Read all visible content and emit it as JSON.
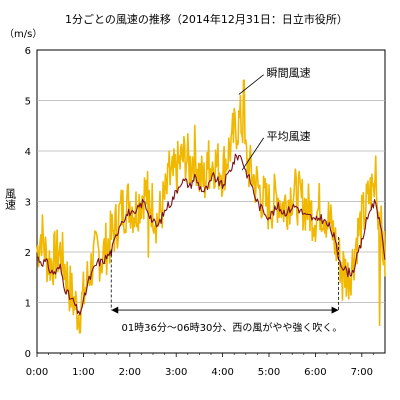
{
  "chart_data": {
    "type": "line",
    "title": "1分ごとの風速の推移（2014年12月31日：日立市役所）",
    "ylabel": "風速",
    "yunit": "（m/s）",
    "ylim": [
      0,
      6
    ],
    "yticks": [
      "0",
      "1",
      "2",
      "3",
      "4",
      "5",
      "6"
    ],
    "xlim": [
      0,
      7.5
    ],
    "xticks": [
      {
        "x": 0,
        "label": "0:00"
      },
      {
        "x": 1,
        "label": "1:00"
      },
      {
        "x": 2,
        "label": "2:00"
      },
      {
        "x": 3,
        "label": "3:00"
      },
      {
        "x": 4,
        "label": "4:00"
      },
      {
        "x": 5,
        "label": "5:00"
      },
      {
        "x": 6,
        "label": "6:00"
      },
      {
        "x": 7,
        "label": "7:00"
      }
    ],
    "grid": true,
    "colors": {
      "gust": "#f0b800",
      "mean": "#7a1020",
      "grid": "#b0b0b0",
      "annotation": "#000000"
    },
    "annotation": {
      "text": "01時36分～06時30分、西の風がやや強く吹く。",
      "x_start": 1.6,
      "x_end": 6.5,
      "y": 0.85
    },
    "series": [
      {
        "name": "瞬間風速",
        "style": "spiky",
        "label_point": [
          4.6,
          4.95
        ],
        "x": [
          0,
          0.1,
          0.2,
          0.3,
          0.4,
          0.5,
          0.6,
          0.7,
          0.8,
          0.9,
          1.0,
          1.1,
          1.2,
          1.3,
          1.4,
          1.5,
          1.6,
          1.7,
          1.8,
          1.9,
          2.0,
          2.1,
          2.2,
          2.3,
          2.4,
          2.5,
          2.6,
          2.7,
          2.8,
          2.9,
          3.0,
          3.1,
          3.2,
          3.3,
          3.4,
          3.5,
          3.6,
          3.7,
          3.8,
          3.9,
          4.0,
          4.1,
          4.2,
          4.3,
          4.4,
          4.5,
          4.6,
          4.7,
          4.8,
          4.9,
          5.0,
          5.1,
          5.2,
          5.3,
          5.4,
          5.5,
          5.6,
          5.7,
          5.8,
          5.9,
          6.0,
          6.1,
          6.2,
          6.3,
          6.4,
          6.5,
          6.6,
          6.7,
          6.8,
          6.9,
          7.0,
          7.1,
          7.2,
          7.3,
          7.4,
          7.5
        ],
        "y": [
          2.0,
          2.4,
          1.9,
          1.8,
          1.9,
          2.0,
          1.7,
          1.3,
          1.0,
          0.8,
          1.1,
          1.5,
          1.8,
          2.0,
          1.9,
          2.1,
          2.3,
          2.5,
          2.8,
          2.9,
          3.0,
          2.8,
          3.0,
          3.2,
          3.1,
          2.9,
          2.6,
          2.9,
          3.2,
          3.4,
          3.6,
          3.8,
          3.9,
          3.7,
          4.0,
          3.5,
          3.4,
          3.6,
          3.8,
          3.7,
          3.6,
          3.9,
          4.2,
          4.5,
          4.6,
          3.9,
          3.6,
          3.4,
          3.2,
          3.0,
          2.9,
          3.0,
          3.1,
          2.9,
          3.0,
          3.2,
          3.1,
          3.0,
          2.9,
          2.8,
          2.7,
          2.9,
          2.8,
          2.6,
          2.3,
          1.9,
          1.7,
          1.5,
          1.8,
          2.3,
          2.6,
          2.9,
          3.2,
          3.3,
          2.5,
          1.8
        ],
        "peaks": [
          {
            "x": 4.46,
            "y": 5.4
          },
          {
            "x": 4.2,
            "y": 4.4
          },
          {
            "x": 3.7,
            "y": 4.2
          },
          {
            "x": 2.85,
            "y": 4.0
          },
          {
            "x": 7.3,
            "y": 3.9
          }
        ],
        "troughs": [
          {
            "x": 0.88,
            "y": 0.55
          },
          {
            "x": 2.4,
            "y": 1.9
          },
          {
            "x": 6.58,
            "y": 1.05
          },
          {
            "x": 7.38,
            "y": 0.55
          }
        ]
      },
      {
        "name": "平均風速",
        "style": "smooth",
        "label_point": [
          4.6,
          3.85
        ],
        "x": [
          0,
          0.1,
          0.2,
          0.3,
          0.4,
          0.5,
          0.6,
          0.7,
          0.8,
          0.9,
          1.0,
          1.1,
          1.2,
          1.3,
          1.4,
          1.5,
          1.6,
          1.7,
          1.8,
          1.9,
          2.0,
          2.1,
          2.2,
          2.3,
          2.4,
          2.5,
          2.6,
          2.7,
          2.8,
          2.9,
          3.0,
          3.1,
          3.2,
          3.3,
          3.4,
          3.5,
          3.6,
          3.7,
          3.8,
          3.9,
          4.0,
          4.1,
          4.2,
          4.3,
          4.4,
          4.5,
          4.6,
          4.7,
          4.8,
          4.9,
          5.0,
          5.1,
          5.2,
          5.3,
          5.4,
          5.5,
          5.6,
          5.7,
          5.8,
          5.9,
          6.0,
          6.1,
          6.2,
          6.3,
          6.4,
          6.5,
          6.6,
          6.7,
          6.8,
          6.9,
          7.0,
          7.1,
          7.2,
          7.3,
          7.4,
          7.5
        ],
        "y": [
          1.9,
          1.8,
          1.8,
          1.6,
          1.6,
          1.7,
          1.3,
          1.1,
          1.0,
          0.75,
          1.0,
          1.4,
          1.6,
          1.8,
          1.8,
          1.9,
          2.0,
          2.3,
          2.6,
          2.7,
          2.8,
          2.7,
          2.9,
          3.0,
          2.8,
          2.6,
          2.5,
          2.7,
          2.9,
          3.0,
          3.2,
          3.4,
          3.4,
          3.3,
          3.5,
          3.3,
          3.2,
          3.3,
          3.5,
          3.4,
          3.3,
          3.5,
          3.7,
          3.9,
          3.9,
          3.6,
          3.4,
          3.1,
          2.9,
          2.8,
          2.7,
          2.8,
          2.9,
          2.8,
          2.8,
          2.9,
          2.9,
          2.8,
          2.7,
          2.7,
          2.6,
          2.7,
          2.6,
          2.5,
          2.3,
          1.9,
          1.7,
          1.6,
          1.6,
          1.9,
          2.2,
          2.6,
          2.9,
          3.0,
          2.5,
          1.9
        ]
      }
    ]
  }
}
